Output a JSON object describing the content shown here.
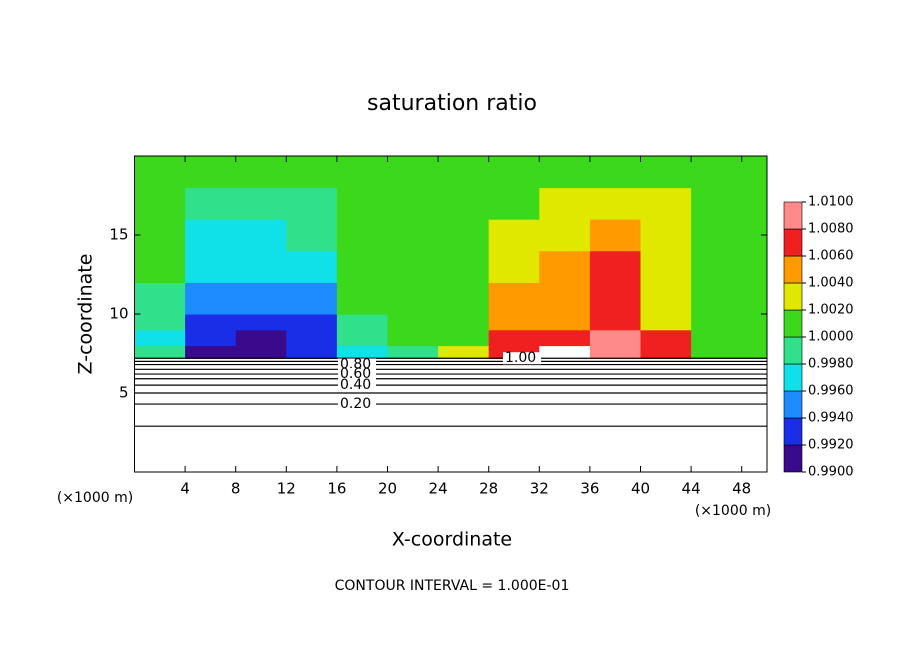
{
  "chart_data": {
    "type": "heatmap",
    "title": "saturation ratio",
    "xlabel": "X-coordinate",
    "ylabel": "Z-coordinate",
    "x_unit_labels": [
      "(×1000 m)",
      "(×1000 m)"
    ],
    "footer": "CONTOUR INTERVAL = 1.000E-01",
    "xlim": [
      0,
      50
    ],
    "ylim": [
      0,
      20
    ],
    "xticks": [
      4,
      8,
      12,
      16,
      20,
      24,
      28,
      32,
      36,
      40,
      44,
      48
    ],
    "yticks": [
      5,
      10,
      15
    ],
    "x_bins": [
      0,
      4,
      8,
      12,
      16,
      20,
      24,
      28,
      32,
      36,
      40,
      44,
      48,
      50
    ],
    "z_bins": [
      7.2,
      8,
      9,
      10,
      12,
      14,
      16,
      18,
      20
    ],
    "values": [
      [
        0.9985,
        0.9915,
        0.9915,
        0.9925,
        0.9965,
        0.9995,
        1.003,
        1.007,
        1.011,
        1.009,
        1.0065,
        1.0005,
        1.0005
      ],
      [
        0.9975,
        0.9925,
        0.9915,
        0.9925,
        0.9985,
        1.0005,
        1.0005,
        1.0065,
        1.0075,
        1.0085,
        1.0065,
        1.0005,
        1.0005
      ],
      [
        0.999,
        0.993,
        0.993,
        0.9935,
        0.9995,
        1.0005,
        1.0005,
        1.0055,
        1.0045,
        1.0075,
        1.003,
        1.0015,
        1.0005
      ],
      [
        0.9995,
        0.9945,
        0.9945,
        0.995,
        1.0005,
        1.0005,
        1.0005,
        1.0045,
        1.0045,
        1.007,
        1.0025,
        1.001,
        1.0005
      ],
      [
        1.0005,
        0.9965,
        0.996,
        0.997,
        1.0005,
        1.0005,
        1.001,
        1.003,
        1.0045,
        1.0075,
        1.0025,
        1.0015,
        1.0005
      ],
      [
        1.0005,
        0.9975,
        0.9965,
        0.9985,
        1.0005,
        1.0005,
        1.0015,
        1.0025,
        1.0035,
        1.005,
        1.0025,
        1.0015,
        1.0005
      ],
      [
        1.0005,
        0.999,
        0.9985,
        0.9995,
        1.0005,
        1.0005,
        1.001,
        1.0015,
        1.002,
        1.0025,
        1.002,
        1.001,
        1.0005
      ],
      [
        1.0005,
        1.0005,
        1.0005,
        1.0005,
        1.0005,
        1.0005,
        1.0005,
        1.001,
        1.0015,
        1.0015,
        1.001,
        1.0005,
        1.0005
      ]
    ],
    "colorbar": {
      "ticks": [
        {
          "value": 0.99,
          "label": "0.9900"
        },
        {
          "value": 0.992,
          "label": "0.9920"
        },
        {
          "value": 0.994,
          "label": "0.9940"
        },
        {
          "value": 0.996,
          "label": "0.9960"
        },
        {
          "value": 0.998,
          "label": "0.9980"
        },
        {
          "value": 1.0,
          "label": "1.0000"
        },
        {
          "value": 1.002,
          "label": "1.0020"
        },
        {
          "value": 1.004,
          "label": "1.0040"
        },
        {
          "value": 1.006,
          "label": "1.0060"
        },
        {
          "value": 1.008,
          "label": "1.0080"
        },
        {
          "value": 1.01,
          "label": "1.0100"
        }
      ],
      "colors": [
        "#3a0a8c",
        "#1a2ee8",
        "#1e8cff",
        "#10e0e8",
        "#30e08a",
        "#3cd81c",
        "#e0e800",
        "#ff9a00",
        "#f02020",
        "#ff8a8a"
      ]
    },
    "contour_lines": {
      "levels": [
        0.1,
        0.2,
        0.3,
        0.4,
        0.5,
        0.6,
        0.7,
        0.8,
        0.9,
        1.0
      ],
      "z": [
        2.9,
        4.3,
        5.0,
        5.5,
        5.9,
        6.2,
        6.5,
        6.8,
        7.0,
        7.2
      ]
    },
    "contour_labels": [
      {
        "value": 0.8,
        "label": "0.80"
      },
      {
        "value": 0.6,
        "label": "0.60"
      },
      {
        "value": 0.4,
        "label": "0.40"
      },
      {
        "value": 0.2,
        "label": "0.20"
      },
      {
        "value": 1.0,
        "label": "1.00"
      }
    ]
  }
}
